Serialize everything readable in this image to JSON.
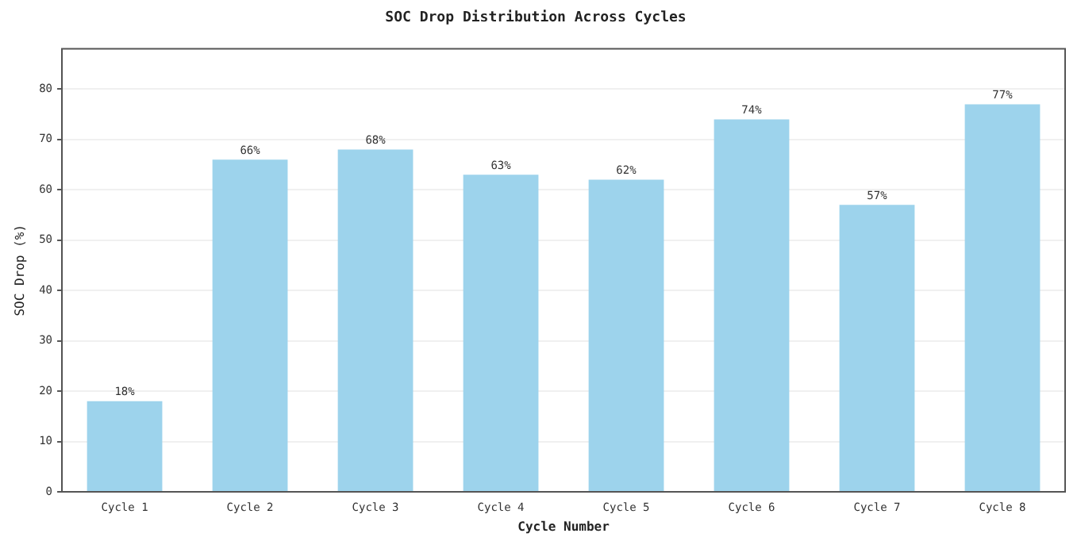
{
  "chart_data": {
    "type": "bar",
    "title": "SOC Drop Distribution Across Cycles",
    "xlabel": "Cycle Number",
    "ylabel": "SOC Drop (%)",
    "categories": [
      "Cycle 1",
      "Cycle 2",
      "Cycle 3",
      "Cycle 4",
      "Cycle 5",
      "Cycle 6",
      "Cycle 7",
      "Cycle 8"
    ],
    "values": [
      18,
      66,
      68,
      63,
      62,
      74,
      57,
      77
    ],
    "value_labels": [
      "18%",
      "66%",
      "68%",
      "63%",
      "62%",
      "74%",
      "57%",
      "77%"
    ],
    "color": "#9dd3ec",
    "ylim": [
      0,
      88
    ],
    "yticks": [
      0,
      10,
      20,
      30,
      40,
      50,
      60,
      70,
      80
    ],
    "grid": "y"
  }
}
